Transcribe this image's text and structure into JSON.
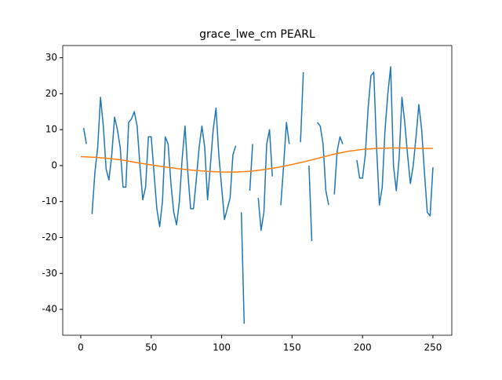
{
  "chart_data": {
    "type": "line",
    "title": "grace_lwe_cm PEARL",
    "xlim": [
      -12.8,
      263.4
    ],
    "xticks": [
      0,
      50,
      100,
      150,
      200,
      250
    ],
    "ylim": [
      -47.2,
      33.4
    ],
    "yticks": [
      -40,
      -30,
      -20,
      -10,
      0,
      10,
      20,
      30
    ],
    "series": [
      {
        "color": "#1f77b4",
        "x": [
          0,
          2,
          4,
          6,
          8,
          10,
          12,
          14,
          16,
          18,
          20,
          22,
          24,
          26,
          28,
          30,
          32,
          34,
          36,
          38,
          40,
          42,
          44,
          46,
          48,
          50,
          52,
          54,
          56,
          58,
          60,
          62,
          64,
          66,
          68,
          70,
          72,
          74,
          76,
          78,
          80,
          82,
          84,
          86,
          88,
          90,
          92,
          94,
          96,
          98,
          100,
          102,
          104,
          106,
          108,
          110,
          112,
          114,
          116,
          118,
          120,
          122,
          124,
          126,
          128,
          130,
          132,
          134,
          136,
          138,
          140,
          142,
          144,
          146,
          148,
          150,
          152,
          154,
          156,
          158,
          160,
          162,
          164,
          166,
          168,
          170,
          172,
          174,
          176,
          178,
          180,
          182,
          184,
          186,
          188,
          190,
          192,
          194,
          196,
          198,
          200,
          202,
          204,
          206,
          208,
          210,
          212,
          214,
          216,
          218,
          220,
          222,
          224,
          226,
          228,
          230,
          232,
          234,
          236,
          238,
          240,
          242,
          244,
          246,
          248,
          250
        ],
        "values": [
          null,
          10.5,
          6,
          null,
          -13.5,
          -2,
          5,
          19,
          11,
          -1,
          -4,
          3,
          13.5,
          10,
          5,
          -6,
          -6,
          12,
          13,
          15,
          11,
          0,
          -9.5,
          -6,
          8,
          8,
          -2,
          -12,
          -17,
          -10,
          8,
          6,
          -5,
          -13,
          -16.5,
          -10,
          2,
          11,
          -2,
          -12,
          -12,
          -4,
          5,
          11,
          5,
          -9.5,
          0,
          10,
          16,
          3,
          -6,
          -15,
          -12,
          -9,
          3,
          5.5,
          null,
          -13,
          -44,
          null,
          -7,
          6,
          null,
          -9,
          -18,
          -13,
          6,
          10,
          -3,
          null,
          null,
          -11,
          0,
          12,
          6,
          null,
          -14,
          null,
          6.5,
          26,
          null,
          0,
          -21,
          null,
          12,
          11,
          6,
          -7,
          -11,
          null,
          -8,
          4,
          8,
          6,
          null,
          null,
          null,
          null,
          1.5,
          -3.5,
          -3.5,
          3,
          16,
          25,
          26,
          5,
          -11,
          -6,
          10,
          20,
          27.5,
          0,
          -7,
          2,
          19,
          12,
          3,
          -5,
          0,
          8,
          17,
          10,
          -2,
          -13,
          -14,
          -0.5
        ]
      },
      {
        "color": "#ff7f0e",
        "x": [
          0,
          10,
          20,
          30,
          40,
          50,
          60,
          70,
          80,
          90,
          100,
          110,
          120,
          130,
          140,
          150,
          160,
          170,
          180,
          190,
          200,
          210,
          220,
          230,
          240,
          250
        ],
        "values": [
          2.5,
          2.3,
          2,
          1.5,
          0.8,
          0.2,
          -0.4,
          -0.9,
          -1.3,
          -1.6,
          -1.8,
          -1.8,
          -1.6,
          -1.1,
          -0.5,
          0.3,
          1.2,
          2.2,
          3.2,
          4,
          4.5,
          4.8,
          4.9,
          4.9,
          4.8,
          4.8
        ]
      }
    ]
  }
}
